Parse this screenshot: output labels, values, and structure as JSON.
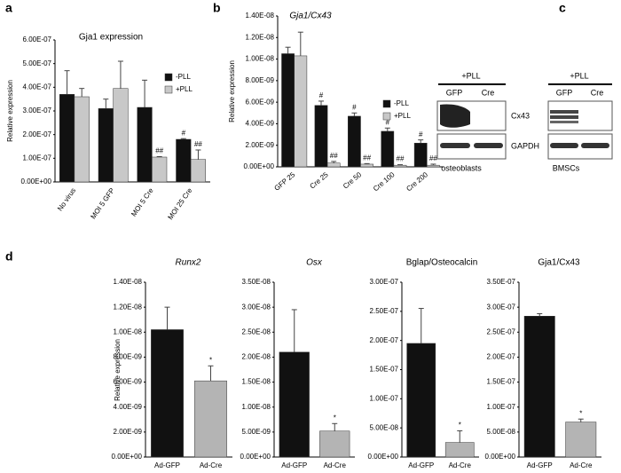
{
  "panel_labels": [
    "a",
    "b",
    "c",
    "d"
  ],
  "blot": {
    "treatment": "+PLL",
    "lanes": [
      "GFP",
      "Cre"
    ],
    "proteins": [
      "Cx43",
      "GAPDH"
    ],
    "cell_types": [
      "osteoblasts",
      "BMSCs"
    ]
  },
  "chart_data": [
    {
      "type": "bar",
      "title": "Gja1 expression",
      "y_label": "Relative expression",
      "legend": "right",
      "categories": [
        "No virus",
        "MOI 5 GFP",
        "MOI 5 Cre",
        "MOI 25 Cre"
      ],
      "series": [
        {
          "name": "-PLL",
          "color": "#111111",
          "values": [
            3.7e-07,
            3.1e-07,
            3.15e-07,
            1.8e-07
          ],
          "errors": [
            1e-07,
            4e-08,
            1.15e-07,
            3e-09
          ],
          "annotations": [
            null,
            null,
            null,
            "#"
          ]
        },
        {
          "name": "+PLL",
          "color": "#c8c8c8",
          "values": [
            3.6e-07,
            3.95e-07,
            1.05e-07,
            9.5e-08
          ],
          "errors": [
            3.5e-08,
            1.15e-07,
            2e-09,
            4e-08
          ],
          "annotations": [
            null,
            null,
            "##",
            "##"
          ]
        }
      ],
      "ylim": [
        0,
        6e-07
      ],
      "yticks": [
        {
          "value": 0,
          "label": "0.00E+00"
        },
        {
          "value": 1e-07,
          "label": "1.00E-07"
        },
        {
          "value": 2e-07,
          "label": "2.00E-07"
        },
        {
          "value": 3e-07,
          "label": "3.00E-07"
        },
        {
          "value": 4e-07,
          "label": "4.00E-07"
        },
        {
          "value": 5e-07,
          "label": "5.00E-07"
        },
        {
          "value": 6e-07,
          "label": "6.00E-07"
        }
      ]
    },
    {
      "type": "bar",
      "title": "Gja1/Cx43",
      "title_italic": true,
      "y_label": "Relative expression",
      "legend": "right",
      "categories": [
        "GFP 25",
        "Cre 25",
        "Cre 50",
        "Cre 100",
        "Cre 200"
      ],
      "series": [
        {
          "name": "-PLL",
          "color": "#111111",
          "values": [
            1.05e-08,
            5.7e-09,
            4.7e-09,
            3.3e-09,
            2.2e-09
          ],
          "errors": [
            6e-10,
            4e-10,
            3e-10,
            3e-10,
            3e-10
          ],
          "annotations": [
            null,
            "#",
            "#",
            "#",
            "#"
          ]
        },
        {
          "name": "+PLL",
          "color": "#c8c8c8",
          "values": [
            1.03e-08,
            3.5e-10,
            2.5e-10,
            1.5e-10,
            1.5e-10
          ],
          "errors": [
            2.2e-09,
            1.5e-10,
            5e-11,
            5e-11,
            1e-10
          ],
          "annotations": [
            null,
            "##",
            "##",
            "##",
            "##"
          ]
        }
      ],
      "ylim": [
        0,
        1.4e-08
      ],
      "yticks": [
        {
          "value": 0,
          "label": "0.00E+00"
        },
        {
          "value": 2e-09,
          "label": "2.00E-09"
        },
        {
          "value": 4e-09,
          "label": "4.00E-09"
        },
        {
          "value": 6e-09,
          "label": "6.00E-09"
        },
        {
          "value": 8e-09,
          "label": "8.00E-09"
        },
        {
          "value": 1e-08,
          "label": "1.00E-08"
        },
        {
          "value": 1.2e-08,
          "label": "1.20E-08"
        },
        {
          "value": 1.4e-08,
          "label": "1.40E-08"
        }
      ]
    },
    {
      "type": "bar",
      "title": "Runx2",
      "title_italic": true,
      "y_label": "Relative expression",
      "categories": [
        "Ad-GFP",
        "Ad-Cre"
      ],
      "colors": [
        "#111111",
        "#b4b4b4"
      ],
      "values": [
        1.02e-08,
        6.1e-09
      ],
      "errors": [
        1.8e-09,
        1.2e-09
      ],
      "annotations": [
        null,
        "*"
      ],
      "ylim": [
        0,
        1.4e-08
      ],
      "yticks": [
        {
          "value": 0,
          "label": "0.00E+00"
        },
        {
          "value": 2e-09,
          "label": "2.00E-09"
        },
        {
          "value": 4e-09,
          "label": "4.00E-09"
        },
        {
          "value": 6e-09,
          "label": "6.00E-09"
        },
        {
          "value": 8e-09,
          "label": "8.00E-09"
        },
        {
          "value": 1e-08,
          "label": "1.00E-08"
        },
        {
          "value": 1.2e-08,
          "label": "1.20E-08"
        },
        {
          "value": 1.4e-08,
          "label": "1.40E-08"
        }
      ]
    },
    {
      "type": "bar",
      "title": "Osx",
      "title_italic": true,
      "categories": [
        "Ad-GFP",
        "Ad-Cre"
      ],
      "colors": [
        "#111111",
        "#b4b4b4"
      ],
      "values": [
        2.1e-08,
        5.2e-09
      ],
      "errors": [
        8.5e-09,
        1.5e-09
      ],
      "annotations": [
        null,
        "*"
      ],
      "ylim": [
        0,
        3.5e-08
      ],
      "yticks": [
        {
          "value": 0,
          "label": "0.00E+00"
        },
        {
          "value": 5e-09,
          "label": "5.00E-09"
        },
        {
          "value": 1e-08,
          "label": "1.00E-08"
        },
        {
          "value": 1.5e-08,
          "label": "1.50E-08"
        },
        {
          "value": 2e-08,
          "label": "2.00E-08"
        },
        {
          "value": 2.5e-08,
          "label": "2.50E-08"
        },
        {
          "value": 3e-08,
          "label": "3.00E-08"
        },
        {
          "value": 3.5e-08,
          "label": "3.50E-08"
        }
      ]
    },
    {
      "type": "bar",
      "title": "Bglap/Osteocalcin",
      "categories": [
        "Ad-GFP",
        "Ad-Cre"
      ],
      "colors": [
        "#111111",
        "#b4b4b4"
      ],
      "values": [
        1.95e-07,
        2.5e-08
      ],
      "errors": [
        6e-08,
        2e-08
      ],
      "annotations": [
        null,
        "*"
      ],
      "ylim": [
        0,
        3e-07
      ],
      "yticks": [
        {
          "value": 0,
          "label": "0.00E+00"
        },
        {
          "value": 5e-08,
          "label": "5.00E-08"
        },
        {
          "value": 1e-07,
          "label": "1.00E-07"
        },
        {
          "value": 1.5e-07,
          "label": "1.50E-07"
        },
        {
          "value": 2e-07,
          "label": "2.00E-07"
        },
        {
          "value": 2.5e-07,
          "label": "2.50E-07"
        },
        {
          "value": 3e-07,
          "label": "3.00E-07"
        }
      ]
    },
    {
      "type": "bar",
      "title": "Gja1/Cx43",
      "categories": [
        "Ad-GFP",
        "Ad-Cre"
      ],
      "colors": [
        "#111111",
        "#b4b4b4"
      ],
      "values": [
        2.82e-07,
        7e-08
      ],
      "errors": [
        5e-09,
        6e-09
      ],
      "annotations": [
        null,
        "*"
      ],
      "ylim": [
        0,
        3.5e-07
      ],
      "yticks": [
        {
          "value": 0,
          "label": "0.00E+00"
        },
        {
          "value": 5e-08,
          "label": "5.00E-08"
        },
        {
          "value": 1e-07,
          "label": "1.00E-07"
        },
        {
          "value": 1.5e-07,
          "label": "1.50E-07"
        },
        {
          "value": 2e-07,
          "label": "2.00E-07"
        },
        {
          "value": 2.5e-07,
          "label": "2.50E-07"
        },
        {
          "value": 3e-07,
          "label": "3.00E-07"
        },
        {
          "value": 3.5e-07,
          "label": "3.50E-07"
        }
      ]
    }
  ]
}
